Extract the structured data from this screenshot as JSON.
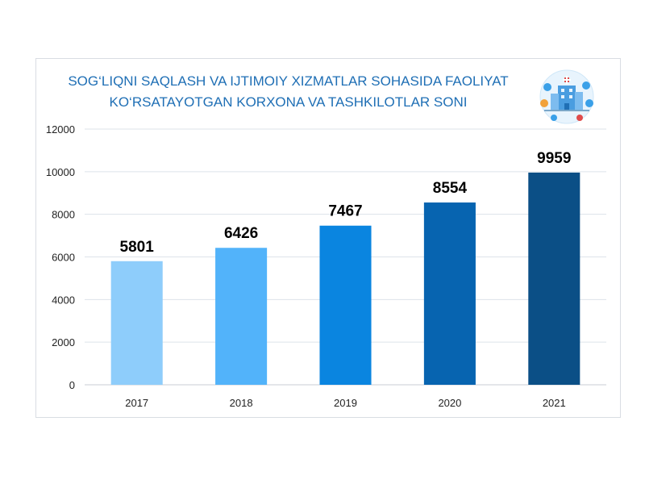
{
  "chart_data": {
    "type": "bar",
    "title_lines": [
      "SOG‘LIQNI SAQLASH VA IJTIMOIY XIZMATLAR SOHASIDA FAOLIYAT",
      "KO‘RSATAYOTGAN KORXONA VA TASHKILOTLAR SONI"
    ],
    "categories": [
      "2017",
      "2018",
      "2019",
      "2020",
      "2021"
    ],
    "values": [
      5801,
      6426,
      7467,
      8554,
      9959
    ],
    "data_labels": [
      "5801",
      "6426",
      "7467",
      "8554",
      "9959"
    ],
    "ylim": [
      0,
      12000
    ],
    "yticks": [
      "0",
      "2000",
      "4000",
      "6000",
      "8000",
      "10000",
      "12000"
    ],
    "grid": true,
    "xlabel": "",
    "ylabel": "",
    "colors": [
      "#8ecdfb",
      "#52b3fa",
      "#0a85e0",
      "#0764b0",
      "#0b4f86"
    ],
    "grid_color": "#dde3ea",
    "axis_color": "#c8ced6"
  },
  "emblem": {
    "icon": "healthcare-buildings-icon"
  }
}
